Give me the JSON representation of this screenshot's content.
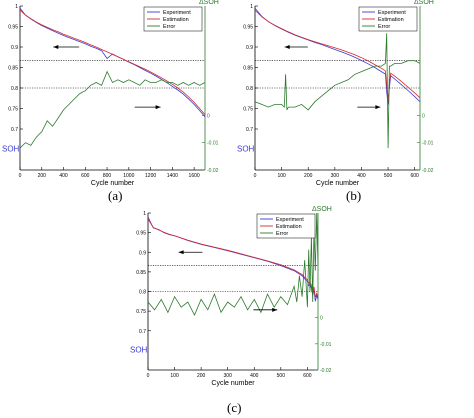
{
  "figure": {
    "panels": [
      {
        "id": "a",
        "label": "(a)"
      },
      {
        "id": "b",
        "label": "(b)"
      },
      {
        "id": "c",
        "label": "(c)"
      }
    ]
  },
  "chart_data": [
    {
      "type": "line",
      "panel": "(a)",
      "xlabel": "Cycle number",
      "ylabel": "SOH",
      "y2label": "ΔSOH",
      "xlim": [
        0,
        1700
      ],
      "xticks": [
        0,
        200,
        400,
        600,
        800,
        1000,
        1200,
        1400,
        1600
      ],
      "ylim": [
        0.6,
        1.0
      ],
      "yticks": [
        0.7,
        0.75,
        0.8,
        0.85,
        0.9,
        0.95,
        1
      ],
      "y2lim": [
        -0.02,
        0.04
      ],
      "y2ticks": [
        -0.02,
        -0.01,
        0,
        0.01,
        0.02,
        0.03,
        0.04
      ],
      "threshold_soh": 0.8,
      "error_reference": 0.02,
      "legend": [
        "Experiment",
        "Estimation",
        "Error"
      ],
      "colors": {
        "experiment": "#3a3ad6",
        "estimation": "#d62a2a",
        "error": "#2c7a2c",
        "axis_right": "#2c7a2c",
        "ylabel": "#3a3ad6"
      },
      "series": [
        {
          "name": "Experiment",
          "x": [
            0,
            50,
            100,
            150,
            200,
            250,
            300,
            350,
            400,
            450,
            500,
            550,
            600,
            650,
            700,
            750,
            800,
            850,
            900,
            950,
            1000,
            1050,
            1100,
            1150,
            1200,
            1250,
            1300,
            1350,
            1400,
            1450,
            1500,
            1550,
            1600,
            1650,
            1700
          ],
          "values": [
            0.995,
            0.978,
            0.968,
            0.96,
            0.952,
            0.946,
            0.94,
            0.934,
            0.928,
            0.923,
            0.918,
            0.913,
            0.908,
            0.902,
            0.897,
            0.891,
            0.872,
            0.883,
            0.876,
            0.87,
            0.863,
            0.857,
            0.85,
            0.843,
            0.836,
            0.829,
            0.821,
            0.813,
            0.804,
            0.795,
            0.785,
            0.773,
            0.76,
            0.745,
            0.73
          ]
        },
        {
          "name": "Estimation",
          "x": [
            0,
            50,
            100,
            150,
            200,
            250,
            300,
            350,
            400,
            450,
            500,
            550,
            600,
            650,
            700,
            750,
            800,
            850,
            900,
            950,
            1000,
            1050,
            1100,
            1150,
            1200,
            1250,
            1300,
            1350,
            1400,
            1450,
            1500,
            1550,
            1600,
            1650,
            1700
          ],
          "values": [
            0.99,
            0.978,
            0.969,
            0.961,
            0.954,
            0.948,
            0.942,
            0.937,
            0.931,
            0.926,
            0.921,
            0.916,
            0.911,
            0.905,
            0.9,
            0.894,
            0.888,
            0.882,
            0.876,
            0.87,
            0.864,
            0.858,
            0.852,
            0.846,
            0.839,
            0.832,
            0.825,
            0.817,
            0.809,
            0.8,
            0.79,
            0.778,
            0.765,
            0.75,
            0.735
          ]
        },
        {
          "name": "Error",
          "axis": "right",
          "x": [
            0,
            50,
            100,
            150,
            200,
            250,
            300,
            350,
            400,
            450,
            500,
            550,
            600,
            650,
            700,
            750,
            800,
            850,
            900,
            950,
            1000,
            1050,
            1100,
            1150,
            1200,
            1250,
            1300,
            1350,
            1400,
            1450,
            1500,
            1550,
            1600,
            1650,
            1700
          ],
          "values": [
            -0.012,
            -0.01,
            -0.011,
            -0.008,
            -0.006,
            -0.002,
            -0.004,
            -0.001,
            0.002,
            0.004,
            0.006,
            0.008,
            0.009,
            0.011,
            0.012,
            0.011,
            0.016,
            0.012,
            0.013,
            0.012,
            0.013,
            0.012,
            0.011,
            0.013,
            0.012,
            0.012,
            0.013,
            0.012,
            0.012,
            0.011,
            0.012,
            0.011,
            0.012,
            0.011,
            0.012
          ]
        }
      ]
    },
    {
      "type": "line",
      "panel": "(b)",
      "xlabel": "Cycle number",
      "ylabel": "SOH",
      "y2label": "ΔSOH",
      "xlim": [
        0,
        620
      ],
      "xticks": [
        0,
        100,
        200,
        300,
        400,
        500,
        600
      ],
      "ylim": [
        0.6,
        1.0
      ],
      "yticks": [
        0.7,
        0.75,
        0.8,
        0.85,
        0.9,
        0.95,
        1
      ],
      "y2lim": [
        -0.02,
        0.04
      ],
      "y2ticks": [
        -0.02,
        -0.01,
        0,
        0.01,
        0.02,
        0.03,
        0.04
      ],
      "threshold_soh": 0.8,
      "error_reference": 0.02,
      "legend": [
        "Experiment",
        "Estimation",
        "Error"
      ],
      "colors": {
        "experiment": "#3a3ad6",
        "estimation": "#d62a2a",
        "error": "#2c7a2c",
        "axis_right": "#2c7a2c",
        "ylabel": "#3a3ad6"
      },
      "series": [
        {
          "name": "Experiment",
          "x": [
            0,
            25,
            50,
            75,
            100,
            125,
            150,
            175,
            200,
            225,
            250,
            275,
            300,
            325,
            350,
            375,
            400,
            425,
            450,
            475,
            490,
            495,
            500,
            505,
            510,
            525,
            550,
            575,
            600,
            620
          ],
          "values": [
            0.995,
            0.975,
            0.962,
            0.952,
            0.944,
            0.936,
            0.929,
            0.923,
            0.917,
            0.911,
            0.906,
            0.9,
            0.894,
            0.888,
            0.882,
            0.875,
            0.867,
            0.859,
            0.85,
            0.84,
            0.834,
            0.79,
            0.76,
            0.8,
            0.83,
            0.822,
            0.808,
            0.794,
            0.779,
            0.766
          ]
        },
        {
          "name": "Estimation",
          "x": [
            0,
            25,
            50,
            75,
            100,
            125,
            150,
            175,
            200,
            225,
            250,
            275,
            300,
            325,
            350,
            375,
            400,
            425,
            450,
            475,
            490,
            495,
            500,
            505,
            510,
            525,
            550,
            575,
            600,
            620
          ],
          "values": [
            0.99,
            0.974,
            0.962,
            0.953,
            0.945,
            0.937,
            0.93,
            0.924,
            0.918,
            0.913,
            0.908,
            0.903,
            0.898,
            0.893,
            0.887,
            0.881,
            0.874,
            0.866,
            0.857,
            0.848,
            0.842,
            0.81,
            0.77,
            0.81,
            0.836,
            0.829,
            0.816,
            0.802,
            0.788,
            0.776
          ]
        },
        {
          "name": "Error",
          "axis": "right",
          "x": [
            0,
            25,
            50,
            75,
            100,
            110,
            115,
            120,
            125,
            150,
            175,
            200,
            225,
            250,
            275,
            300,
            325,
            350,
            375,
            400,
            425,
            450,
            475,
            490,
            495,
            500,
            505,
            510,
            525,
            550,
            575,
            600,
            620
          ],
          "values": [
            0.005,
            0.004,
            0.003,
            0.004,
            0.004,
            0.003,
            0.015,
            0.002,
            0.003,
            0.003,
            0.004,
            0.002,
            0.005,
            0.007,
            0.009,
            0.011,
            0.012,
            0.013,
            0.015,
            0.016,
            0.017,
            0.018,
            0.018,
            0.019,
            0.03,
            -0.012,
            0.018,
            0.018,
            0.019,
            0.019,
            0.02,
            0.02,
            0.019
          ]
        }
      ]
    },
    {
      "type": "line",
      "panel": "(c)",
      "xlabel": "Cycle number",
      "ylabel": "SOH",
      "y2label": "ΔSOH",
      "xlim": [
        0,
        640
      ],
      "xticks": [
        0,
        100,
        200,
        300,
        400,
        500,
        600
      ],
      "ylim": [
        0.6,
        1.0
      ],
      "yticks": [
        0.7,
        0.75,
        0.8,
        0.85,
        0.9,
        0.95,
        1
      ],
      "y2lim": [
        -0.02,
        0.04
      ],
      "y2ticks": [
        -0.02,
        -0.01,
        0,
        0.01,
        0.02,
        0.03,
        0.04
      ],
      "threshold_soh": 0.8,
      "error_reference": 0.02,
      "legend": [
        "Experiment",
        "Estimation",
        "Error"
      ],
      "colors": {
        "experiment": "#3a3ad6",
        "estimation": "#d62a2a",
        "error": "#2c7a2c",
        "axis_right": "#2c7a2c",
        "ylabel": "#3a3ad6"
      },
      "series": [
        {
          "name": "Experiment",
          "x": [
            0,
            20,
            40,
            60,
            80,
            100,
            150,
            200,
            250,
            300,
            350,
            400,
            450,
            500,
            550,
            580,
            590,
            600,
            605,
            610,
            615,
            620,
            625,
            630,
            635,
            640
          ],
          "values": [
            0.99,
            0.962,
            0.958,
            0.95,
            0.945,
            0.942,
            0.93,
            0.92,
            0.912,
            0.904,
            0.895,
            0.886,
            0.877,
            0.866,
            0.853,
            0.84,
            0.832,
            0.826,
            0.815,
            0.82,
            0.808,
            0.79,
            0.805,
            0.775,
            0.79,
            0.78
          ]
        },
        {
          "name": "Estimation",
          "x": [
            0,
            20,
            40,
            60,
            80,
            100,
            150,
            200,
            250,
            300,
            350,
            400,
            450,
            500,
            550,
            580,
            590,
            600,
            605,
            610,
            615,
            620,
            625,
            630,
            635,
            640
          ],
          "values": [
            0.985,
            0.963,
            0.957,
            0.951,
            0.946,
            0.942,
            0.931,
            0.921,
            0.913,
            0.905,
            0.896,
            0.887,
            0.878,
            0.868,
            0.855,
            0.843,
            0.836,
            0.83,
            0.822,
            0.825,
            0.816,
            0.8,
            0.812,
            0.785,
            0.795,
            0.785
          ]
        },
        {
          "name": "Error",
          "axis": "right",
          "x": [
            0,
            25,
            50,
            75,
            100,
            125,
            150,
            175,
            200,
            225,
            250,
            275,
            300,
            325,
            350,
            375,
            400,
            425,
            450,
            475,
            500,
            525,
            550,
            560,
            570,
            580,
            590,
            600,
            605,
            610,
            615,
            620,
            625,
            630,
            635,
            640
          ],
          "values": [
            0.006,
            0.003,
            0.007,
            0.002,
            0.008,
            0.004,
            0.006,
            0.001,
            0.007,
            0.003,
            0.009,
            0.002,
            0.006,
            0.004,
            0.008,
            0.003,
            0.007,
            0.002,
            0.009,
            0.004,
            0.008,
            0.005,
            0.012,
            0.006,
            0.016,
            0.008,
            0.022,
            0.004,
            0.026,
            0.01,
            0.031,
            0.006,
            0.034,
            0.018,
            0.04,
            0.02
          ]
        }
      ]
    }
  ]
}
